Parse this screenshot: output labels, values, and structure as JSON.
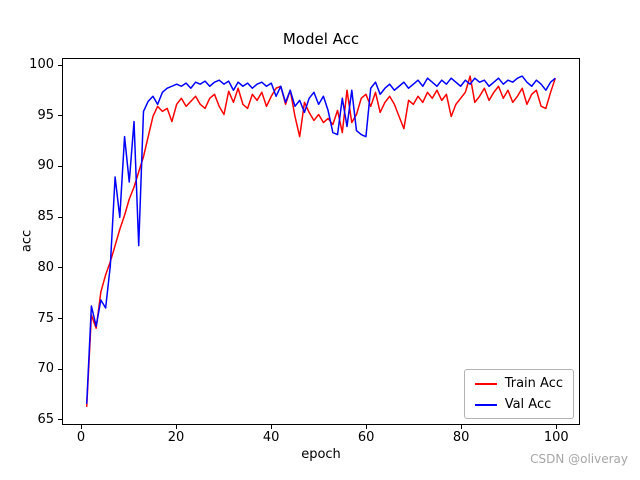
{
  "watermark": "CSDN @oliveray",
  "chart_data": {
    "type": "line",
    "title": "Model Acc",
    "xlabel": "epoch",
    "ylabel": "acc",
    "grid": false,
    "legend_position": "lower right",
    "xlim": [
      -4,
      105
    ],
    "ylim": [
      64.5,
      100.7
    ],
    "xticks": [
      0,
      20,
      40,
      60,
      80,
      100
    ],
    "yticks": [
      65,
      70,
      75,
      80,
      85,
      90,
      95,
      100
    ],
    "x": [
      1,
      2,
      3,
      4,
      5,
      6,
      7,
      8,
      9,
      10,
      11,
      12,
      13,
      14,
      15,
      16,
      17,
      18,
      19,
      20,
      21,
      22,
      23,
      24,
      25,
      26,
      27,
      28,
      29,
      30,
      31,
      32,
      33,
      34,
      35,
      36,
      37,
      38,
      39,
      40,
      41,
      42,
      43,
      44,
      45,
      46,
      47,
      48,
      49,
      50,
      51,
      52,
      53,
      54,
      55,
      56,
      57,
      58,
      59,
      60,
      61,
      62,
      63,
      64,
      65,
      66,
      67,
      68,
      69,
      70,
      71,
      72,
      73,
      74,
      75,
      76,
      77,
      78,
      79,
      80,
      81,
      82,
      83,
      84,
      85,
      86,
      87,
      88,
      89,
      90,
      91,
      92,
      93,
      94,
      95,
      96,
      97,
      98,
      99,
      100
    ],
    "series": [
      {
        "name": "Train Acc",
        "color": "#ff0000",
        "values": [
          66.2,
          75.3,
          74.0,
          77.6,
          79.3,
          80.6,
          82.2,
          83.8,
          85.2,
          86.8,
          88.0,
          89.5,
          91.0,
          93.0,
          95.0,
          96.0,
          95.5,
          95.8,
          94.5,
          96.2,
          96.8,
          96.0,
          96.5,
          97.0,
          96.2,
          95.8,
          96.8,
          97.2,
          96.0,
          95.2,
          97.5,
          96.4,
          97.8,
          96.2,
          95.8,
          97.2,
          96.6,
          97.4,
          96.0,
          97.0,
          97.8,
          98.0,
          96.2,
          97.6,
          95.0,
          93.0,
          96.4,
          95.4,
          94.6,
          95.2,
          94.4,
          94.8,
          94.2,
          95.6,
          93.4,
          97.6,
          94.4,
          95.2,
          96.8,
          97.2,
          96.0,
          97.4,
          95.4,
          96.4,
          97.0,
          96.2,
          95.0,
          93.8,
          96.6,
          96.2,
          97.0,
          96.4,
          97.4,
          96.8,
          97.6,
          96.6,
          97.2,
          95.0,
          96.2,
          96.8,
          97.4,
          99.0,
          96.4,
          97.0,
          97.8,
          96.6,
          97.4,
          98.0,
          96.8,
          97.6,
          96.4,
          97.0,
          97.8,
          96.2,
          97.2,
          97.6,
          96.0,
          95.8,
          97.4,
          98.8
        ]
      },
      {
        "name": "Val Acc",
        "color": "#0000ff",
        "values": [
          66.5,
          76.2,
          74.2,
          76.8,
          76.0,
          80.2,
          89.0,
          85.0,
          93.0,
          88.5,
          94.5,
          82.2,
          95.5,
          96.5,
          97.0,
          96.2,
          97.4,
          97.8,
          98.0,
          98.2,
          98.0,
          98.3,
          97.8,
          98.4,
          98.2,
          98.5,
          98.0,
          98.4,
          98.6,
          98.2,
          98.5,
          97.6,
          98.4,
          98.0,
          98.3,
          97.8,
          98.2,
          98.4,
          98.0,
          98.3,
          97.0,
          98.0,
          96.4,
          97.6,
          96.0,
          96.6,
          95.4,
          96.8,
          97.4,
          96.2,
          97.0,
          95.6,
          93.4,
          93.2,
          96.8,
          94.0,
          97.6,
          93.6,
          93.2,
          93.0,
          97.8,
          98.4,
          97.2,
          97.8,
          98.2,
          97.6,
          98.0,
          98.4,
          97.8,
          98.2,
          98.6,
          98.0,
          98.8,
          98.4,
          98.0,
          98.6,
          98.2,
          98.8,
          98.4,
          98.0,
          98.6,
          98.2,
          98.8,
          98.4,
          98.6,
          98.0,
          98.4,
          98.8,
          98.2,
          98.6,
          98.4,
          98.8,
          99.0,
          98.4,
          98.0,
          98.6,
          98.2,
          97.6,
          98.4,
          98.8
        ]
      }
    ]
  }
}
